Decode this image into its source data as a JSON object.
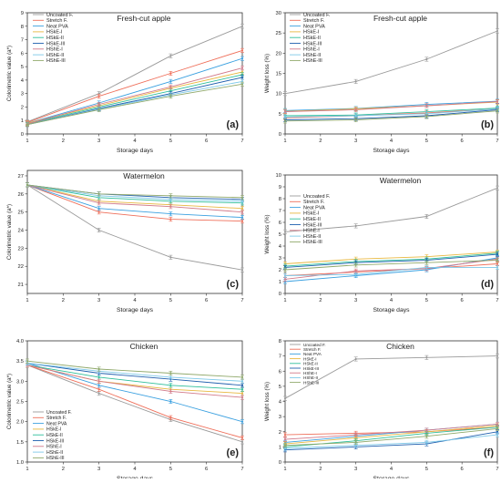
{
  "colors": [
    "#9a9a9a",
    "#ef6f5a",
    "#3aa0e0",
    "#e8b840",
    "#2fbf9a",
    "#1f5fae",
    "#d27a8a",
    "#7dc8e8",
    "#8fa86a",
    "#d6a050"
  ],
  "chart_data": [
    {
      "type": "line",
      "title": "Fresh-cut apple",
      "xlabel": "Storage days",
      "ylabel": "Colorimetric value (a*)",
      "panel_label": "(a)",
      "xlim": [
        1,
        7
      ],
      "ylim": [
        0,
        9
      ],
      "legend": "top-left",
      "x": [
        1,
        3,
        5,
        7
      ],
      "xticks": [
        "1",
        "2",
        "3",
        "4",
        "5",
        "6",
        "7"
      ],
      "yticks": [
        "0",
        "1",
        "2",
        "3",
        "4",
        "5",
        "6",
        "7",
        "8",
        "9"
      ],
      "series": [
        {
          "name": "Uncoated F.",
          "values": [
            0.9,
            3.0,
            5.8,
            8.0
          ]
        },
        {
          "name": "Stretch F.",
          "values": [
            0.85,
            2.8,
            4.5,
            6.2
          ]
        },
        {
          "name": "Neat PVA",
          "values": [
            0.8,
            2.3,
            3.9,
            5.6
          ]
        },
        {
          "name": "HSkE-I",
          "values": [
            0.8,
            2.1,
            3.4,
            4.6
          ]
        },
        {
          "name": "HSkE-II",
          "values": [
            0.75,
            2.0,
            3.2,
            4.4
          ]
        },
        {
          "name": "HSkE-III",
          "values": [
            0.7,
            1.9,
            3.0,
            4.2
          ]
        },
        {
          "name": "HShE-I",
          "values": [
            0.75,
            2.2,
            3.5,
            4.9
          ]
        },
        {
          "name": "HShE-II",
          "values": [
            0.7,
            1.85,
            2.9,
            3.9
          ]
        },
        {
          "name": "HShE-III",
          "values": [
            0.7,
            1.8,
            2.8,
            3.7
          ]
        }
      ]
    },
    {
      "type": "line",
      "title": "Fresh-cut apple",
      "xlabel": "Storage days",
      "ylabel": "Weight loss (%)",
      "panel_label": "(b)",
      "xlim": [
        1,
        7
      ],
      "ylim": [
        0,
        30
      ],
      "legend": "top-left",
      "x": [
        1,
        3,
        5,
        7
      ],
      "xticks": [
        "1",
        "2",
        "3",
        "4",
        "5",
        "6",
        "7"
      ],
      "yticks": [
        "0",
        "5",
        "10",
        "15",
        "20",
        "25",
        "30"
      ],
      "series": [
        {
          "name": "Uncoated F.",
          "values": [
            10.0,
            13.0,
            18.5,
            25.5
          ]
        },
        {
          "name": "Stretch F.",
          "values": [
            4.0,
            4.5,
            5.2,
            6.2
          ]
        },
        {
          "name": "Neat PVA",
          "values": [
            5.8,
            6.3,
            7.3,
            8.1
          ]
        },
        {
          "name": "HSkE-I",
          "values": [
            5.6,
            6.2,
            7.0,
            7.9
          ]
        },
        {
          "name": "HSkE-II",
          "values": [
            4.5,
            4.7,
            5.5,
            6.4
          ]
        },
        {
          "name": "HSkE-III",
          "values": [
            3.5,
            3.8,
            4.5,
            6.0
          ]
        },
        {
          "name": "HShE-I",
          "values": [
            5.5,
            6.0,
            7.0,
            8.0
          ]
        },
        {
          "name": "HShE-II",
          "values": [
            4.2,
            4.5,
            5.0,
            6.2
          ]
        },
        {
          "name": "HShE-III",
          "values": [
            3.2,
            3.5,
            4.3,
            5.7
          ]
        }
      ]
    },
    {
      "type": "line",
      "title": "Watermelon",
      "xlabel": "Storage days",
      "ylabel": "Colorimetric value (a*)",
      "panel_label": "(c)",
      "xlim": [
        1,
        7
      ],
      "ylim": [
        20.5,
        27.3
      ],
      "legend": "none",
      "x": [
        1,
        3,
        5,
        7
      ],
      "xticks": [
        "1",
        "2",
        "3",
        "4",
        "5",
        "6",
        "7"
      ],
      "yticks": [
        "21",
        "22",
        "23",
        "24",
        "25",
        "26",
        "27"
      ],
      "series": [
        {
          "name": "Uncoated F.",
          "values": [
            26.5,
            24.0,
            22.5,
            21.8
          ]
        },
        {
          "name": "Stretch F.",
          "values": [
            26.5,
            25.0,
            24.6,
            24.5
          ]
        },
        {
          "name": "Neat PVA",
          "values": [
            26.5,
            25.2,
            24.9,
            24.7
          ]
        },
        {
          "name": "HSkE-I",
          "values": [
            26.5,
            25.6,
            25.4,
            25.2
          ]
        },
        {
          "name": "HSkE-II",
          "values": [
            26.5,
            25.8,
            25.6,
            25.5
          ]
        },
        {
          "name": "HSkE-III",
          "values": [
            26.5,
            26.0,
            25.8,
            25.7
          ]
        },
        {
          "name": "HShE-I",
          "values": [
            26.5,
            25.5,
            25.3,
            25.0
          ]
        },
        {
          "name": "HShE-II",
          "values": [
            26.5,
            25.9,
            25.7,
            25.6
          ]
        },
        {
          "name": "HShE-III",
          "values": [
            26.5,
            26.0,
            25.9,
            25.8
          ]
        }
      ]
    },
    {
      "type": "line",
      "title": "Watermelon",
      "xlabel": "Storage days",
      "ylabel": "Weight loss (%)",
      "panel_label": "(d)",
      "xlim": [
        1,
        7
      ],
      "ylim": [
        0,
        10
      ],
      "legend": "top-left",
      "x": [
        1,
        3,
        5,
        7
      ],
      "xticks": [
        "1",
        "2",
        "3",
        "4",
        "5",
        "6",
        "7"
      ],
      "yticks": [
        "0",
        "1",
        "2",
        "3",
        "4",
        "5",
        "6",
        "7",
        "8",
        "9",
        "10"
      ],
      "series": [
        {
          "name": "Uncoated F.",
          "values": [
            5.2,
            5.7,
            6.5,
            8.9
          ]
        },
        {
          "name": "Stretch F.",
          "values": [
            1.5,
            1.8,
            2.1,
            2.5
          ]
        },
        {
          "name": "Neat PVA",
          "values": [
            1.0,
            1.5,
            2.0,
            3.0
          ]
        },
        {
          "name": "HSkE-I",
          "values": [
            2.5,
            2.9,
            3.1,
            3.5
          ]
        },
        {
          "name": "HSkE-II",
          "values": [
            2.3,
            2.7,
            2.9,
            3.4
          ]
        },
        {
          "name": "HSkE-III",
          "values": [
            2.2,
            2.6,
            2.8,
            3.3
          ]
        },
        {
          "name": "HShE-I",
          "values": [
            1.2,
            1.9,
            2.1,
            2.9
          ]
        },
        {
          "name": "HShE-II",
          "values": [
            1.5,
            1.6,
            2.2,
            2.2
          ]
        },
        {
          "name": "HShE-III",
          "values": [
            2.0,
            2.4,
            2.6,
            2.8
          ]
        }
      ]
    },
    {
      "type": "line",
      "title": "Chicken",
      "xlabel": "Storage days",
      "ylabel": "Colorimetric value (a*)",
      "panel_label": "(e)",
      "xlim": [
        1,
        7
      ],
      "ylim": [
        1.0,
        4.0
      ],
      "legend": "bottom-left",
      "x": [
        1,
        3,
        5,
        7
      ],
      "xticks": [
        "1",
        "2",
        "3",
        "4",
        "5",
        "6",
        "7"
      ],
      "yticks": [
        "1.0",
        "1.5",
        "2.0",
        "2.5",
        "3.0",
        "3.5",
        "4.0"
      ],
      "series": [
        {
          "name": "Uncoated F.",
          "values": [
            3.4,
            2.7,
            2.05,
            1.5
          ]
        },
        {
          "name": "Stretch F.",
          "values": [
            3.4,
            2.8,
            2.1,
            1.6
          ]
        },
        {
          "name": "Neat PVA",
          "values": [
            3.45,
            2.9,
            2.5,
            2.0
          ]
        },
        {
          "name": "HSkE-I",
          "values": [
            3.4,
            3.0,
            2.8,
            2.7
          ]
        },
        {
          "name": "HSkE-II",
          "values": [
            3.4,
            3.1,
            2.9,
            2.8
          ]
        },
        {
          "name": "HSkE-III",
          "values": [
            3.45,
            3.2,
            3.05,
            2.9
          ]
        },
        {
          "name": "HShE-I",
          "values": [
            3.4,
            3.0,
            2.75,
            2.6
          ]
        },
        {
          "name": "HShE-II",
          "values": [
            3.45,
            3.25,
            3.1,
            3.0
          ]
        },
        {
          "name": "HShE-III",
          "values": [
            3.5,
            3.3,
            3.2,
            3.1
          ]
        }
      ]
    },
    {
      "type": "line",
      "title": "Chicken",
      "xlabel": "Storage days",
      "ylabel": "Weight loss (%)",
      "panel_label": "(f)",
      "xlim": [
        1,
        7
      ],
      "ylim": [
        0,
        8
      ],
      "legend": "top-left",
      "x": [
        1,
        3,
        5,
        7
      ],
      "xticks": [
        "1",
        "2",
        "3",
        "4",
        "5",
        "6",
        "7"
      ],
      "yticks": [
        "0",
        "1",
        "2",
        "3",
        "4",
        "5",
        "6",
        "7",
        "8"
      ],
      "series": [
        {
          "name": "Uncoated F.",
          "values": [
            4.2,
            6.8,
            6.9,
            7.0
          ]
        },
        {
          "name": "Stretch F.",
          "values": [
            1.8,
            1.9,
            2.0,
            2.3
          ]
        },
        {
          "name": "Neat PVA",
          "values": [
            1.3,
            1.7,
            2.1,
            2.5
          ]
        },
        {
          "name": "HSkE-I",
          "values": [
            1.2,
            1.6,
            2.0,
            2.4
          ]
        },
        {
          "name": "HSkE-II",
          "values": [
            1.0,
            1.4,
            1.9,
            2.3
          ]
        },
        {
          "name": "HSkE-III",
          "values": [
            0.8,
            1.0,
            1.2,
            2.0
          ]
        },
        {
          "name": "HShE-I",
          "values": [
            1.5,
            1.8,
            2.1,
            2.5
          ]
        },
        {
          "name": "HShE-II",
          "values": [
            0.9,
            1.1,
            1.3,
            1.8
          ]
        },
        {
          "name": "HShE-III",
          "values": [
            1.1,
            1.3,
            1.7,
            2.2
          ]
        }
      ]
    }
  ]
}
